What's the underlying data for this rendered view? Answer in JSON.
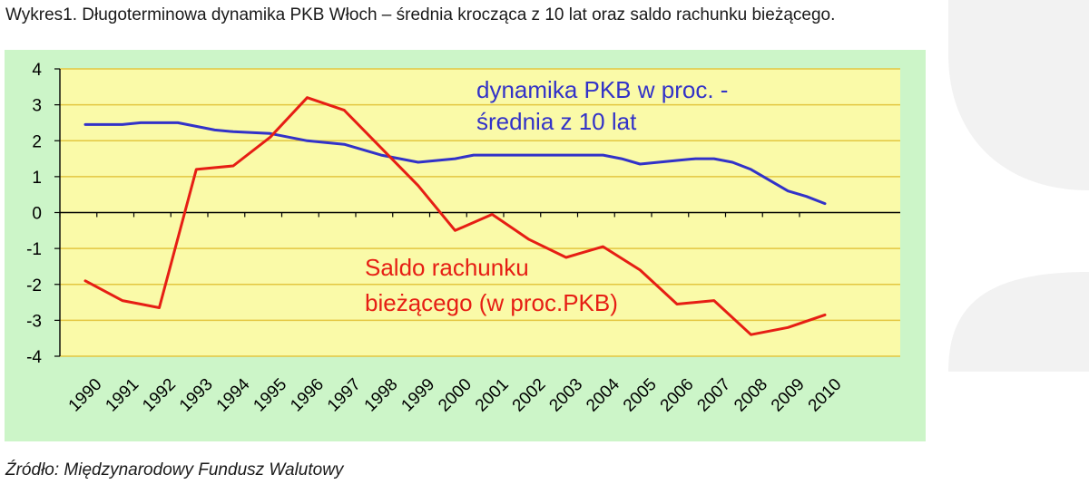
{
  "title": "Wykres1. Długoterminowa dynamika PKB Włoch – średnia krocząca z 10 lat oraz saldo rachunku bieżącego.",
  "source": "Źródło: Międzynarodowy Fundusz Walutowy",
  "colors": {
    "plot_bg": "#fafaa8",
    "chart_bg": "#ccf5c8",
    "gridline": "#e3c640",
    "gdp": "#3232c8",
    "balance": "#e61e14"
  },
  "chart_data": {
    "type": "line",
    "title": "",
    "xlabel": "",
    "ylabel": "",
    "x": [
      "1990",
      "1991",
      "1992",
      "1993",
      "1994",
      "1995",
      "1996",
      "1997",
      "1998",
      "1999",
      "2000",
      "2001",
      "2002",
      "2003",
      "2004",
      "2005",
      "2006",
      "2007",
      "2008",
      "2009",
      "2010"
    ],
    "ylim": [
      -4,
      4
    ],
    "yticks": [
      4,
      3,
      2,
      1,
      0,
      -1,
      -2,
      -3,
      -4
    ],
    "grid": true,
    "series": [
      {
        "name": "dynamika PKB w proc. - średnia z 10 lat",
        "name_lines": [
          "dynamika PKB w proc. -",
          "średnia z 10 lat"
        ],
        "color": "#3232c8",
        "points": [
          {
            "x": 1990.0,
            "y": 2.45
          },
          {
            "x": 1991.0,
            "y": 2.45
          },
          {
            "x": 1991.5,
            "y": 2.5
          },
          {
            "x": 1992.0,
            "y": 2.5
          },
          {
            "x": 1992.5,
            "y": 2.5
          },
          {
            "x": 1993.0,
            "y": 2.4
          },
          {
            "x": 1993.5,
            "y": 2.3
          },
          {
            "x": 1994.0,
            "y": 2.25
          },
          {
            "x": 1995.0,
            "y": 2.2
          },
          {
            "x": 1996.0,
            "y": 2.0
          },
          {
            "x": 1997.0,
            "y": 1.9
          },
          {
            "x": 1998.0,
            "y": 1.6
          },
          {
            "x": 1999.0,
            "y": 1.4
          },
          {
            "x": 2000.0,
            "y": 1.5
          },
          {
            "x": 2000.5,
            "y": 1.6
          },
          {
            "x": 2001.0,
            "y": 1.6
          },
          {
            "x": 2002.0,
            "y": 1.6
          },
          {
            "x": 2003.0,
            "y": 1.6
          },
          {
            "x": 2004.0,
            "y": 1.6
          },
          {
            "x": 2004.5,
            "y": 1.5
          },
          {
            "x": 2005.0,
            "y": 1.35
          },
          {
            "x": 2006.0,
            "y": 1.45
          },
          {
            "x": 2006.5,
            "y": 1.5
          },
          {
            "x": 2007.0,
            "y": 1.5
          },
          {
            "x": 2007.5,
            "y": 1.4
          },
          {
            "x": 2008.0,
            "y": 1.2
          },
          {
            "x": 2008.5,
            "y": 0.9
          },
          {
            "x": 2009.0,
            "y": 0.6
          },
          {
            "x": 2009.5,
            "y": 0.45
          },
          {
            "x": 2010.0,
            "y": 0.25
          }
        ]
      },
      {
        "name": "Saldo rachunku bieżącego (w proc.PKB)",
        "name_lines": [
          "Saldo rachunku",
          "bieżącego (w proc.PKB)"
        ],
        "color": "#e61e14",
        "points": [
          {
            "x": 1990.0,
            "y": -1.9
          },
          {
            "x": 1991.0,
            "y": -2.45
          },
          {
            "x": 1991.5,
            "y": -2.55
          },
          {
            "x": 1992.0,
            "y": -2.65
          },
          {
            "x": 1993.0,
            "y": 1.2
          },
          {
            "x": 1994.0,
            "y": 1.3
          },
          {
            "x": 1995.0,
            "y": 2.1
          },
          {
            "x": 1996.0,
            "y": 3.2
          },
          {
            "x": 1997.0,
            "y": 2.85
          },
          {
            "x": 1998.0,
            "y": 1.8
          },
          {
            "x": 1999.0,
            "y": 0.75
          },
          {
            "x": 2000.0,
            "y": -0.5
          },
          {
            "x": 2001.0,
            "y": -0.05
          },
          {
            "x": 2002.0,
            "y": -0.75
          },
          {
            "x": 2003.0,
            "y": -1.25
          },
          {
            "x": 2004.0,
            "y": -0.95
          },
          {
            "x": 2005.0,
            "y": -1.6
          },
          {
            "x": 2006.0,
            "y": -2.55
          },
          {
            "x": 2007.0,
            "y": -2.45
          },
          {
            "x": 2008.0,
            "y": -3.4
          },
          {
            "x": 2009.0,
            "y": -3.2
          },
          {
            "x": 2010.0,
            "y": -2.85
          }
        ]
      }
    ]
  }
}
